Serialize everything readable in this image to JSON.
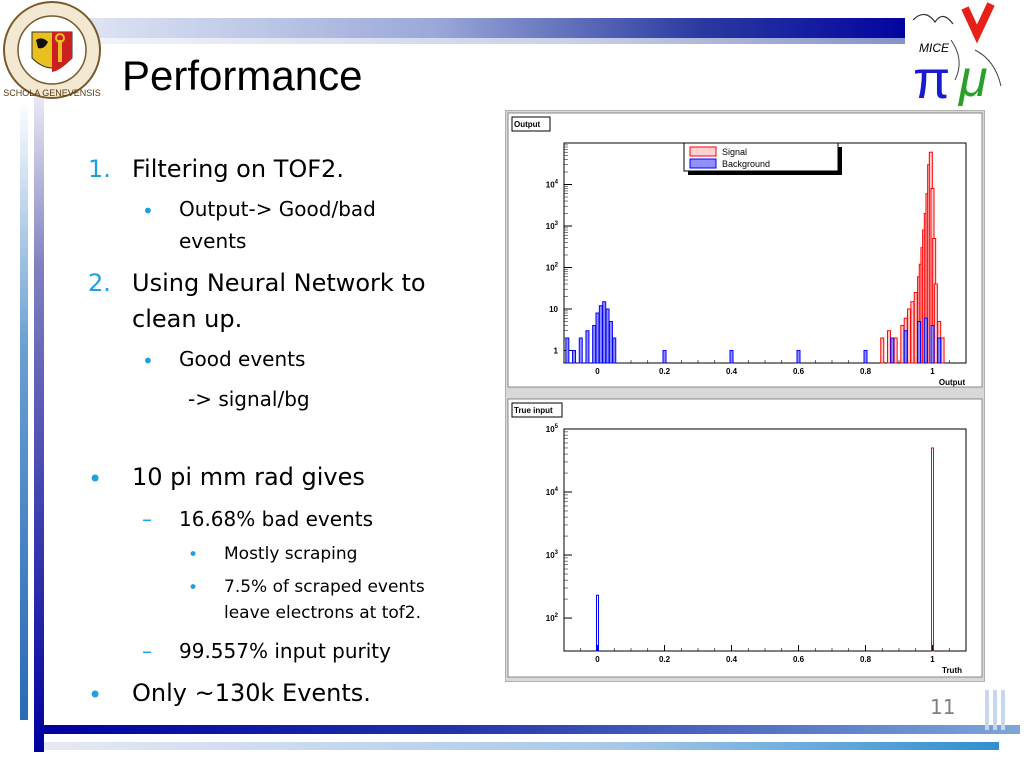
{
  "slide": {
    "title": "Performance",
    "page_number": "11",
    "items": [
      {
        "marker": "1.",
        "text": "Filtering on TOF2."
      },
      {
        "marker": "•",
        "text": "Output-> Good/bad"
      },
      {
        "marker": "",
        "text": "events"
      },
      {
        "marker": "2.",
        "text": "Using Neural Network to"
      },
      {
        "marker": "",
        "text": "clean up."
      },
      {
        "marker": "•",
        "text": "Good events"
      },
      {
        "marker": "",
        "text": "-> signal/bg"
      },
      {
        "marker": "•",
        "text": "10 pi mm rad gives"
      },
      {
        "marker": "–",
        "text": "16.68% bad events"
      },
      {
        "marker": "•",
        "text": "Mostly scraping"
      },
      {
        "marker": "•",
        "text": "7.5% of scraped events"
      },
      {
        "marker": "",
        "text": "leave electrons at tof2."
      },
      {
        "marker": "–",
        "text": "99.557% input purity"
      },
      {
        "marker": "•",
        "text": "Only ~130k Events."
      }
    ],
    "logo_left": {
      "name": "schola-genevensis-seal",
      "text": "SCHOLA GENEVENSIS"
    },
    "logo_right": {
      "name": "mice-logo",
      "text": "MICE"
    }
  },
  "colors": {
    "signal": "#ff0000",
    "background": "#0000ff",
    "bullet": "#1fa0e0",
    "bar_dark": "#0000a0"
  },
  "chart_data": [
    {
      "type": "bar",
      "title": "Output",
      "xlabel": "Output",
      "ylabel": "",
      "y_scale": "log",
      "xlim": [
        -0.1,
        1.1
      ],
      "ylim": [
        0.5,
        100000
      ],
      "x_ticks": [
        "0",
        "0.2",
        "0.4",
        "0.6",
        "0.8",
        "1"
      ],
      "y_ticks": [
        "1",
        "10",
        "10^2",
        "10^3",
        "10^4"
      ],
      "legend": {
        "position": "top",
        "entries": [
          "Signal",
          "Background"
        ]
      },
      "series": [
        {
          "name": "Signal",
          "x": [
            0.85,
            0.87,
            0.89,
            0.91,
            0.92,
            0.93,
            0.94,
            0.95,
            0.96,
            0.965,
            0.97,
            0.975,
            0.98,
            0.985,
            0.99,
            0.995,
            1.0,
            1.005,
            1.01,
            1.02,
            1.03
          ],
          "values": [
            2,
            3,
            2,
            4,
            6,
            10,
            15,
            25,
            60,
            120,
            300,
            800,
            2000,
            6000,
            30000,
            60000,
            8000,
            500,
            40,
            5,
            2
          ]
        },
        {
          "name": "Background",
          "x": [
            -0.09,
            -0.07,
            -0.05,
            -0.03,
            -0.01,
            0.0,
            0.01,
            0.02,
            0.03,
            0.04,
            0.05,
            0.2,
            0.4,
            0.6,
            0.8,
            0.88,
            0.92,
            0.96,
            0.98,
            1.0,
            1.02
          ],
          "values": [
            2,
            1,
            2,
            3,
            4,
            8,
            12,
            15,
            10,
            5,
            2,
            1,
            1,
            1,
            1,
            2,
            3,
            5,
            6,
            4,
            2
          ]
        }
      ]
    },
    {
      "type": "bar",
      "title": "True input",
      "xlabel": "Truth",
      "ylabel": "",
      "y_scale": "log",
      "xlim": [
        -0.1,
        1.1
      ],
      "ylim": [
        30,
        100000
      ],
      "x_ticks": [
        "0",
        "0.2",
        "0.4",
        "0.6",
        "0.8",
        "1"
      ],
      "y_ticks": [
        "10^2",
        "10^3",
        "10^4",
        "10^5"
      ],
      "series": [
        {
          "name": "Background",
          "x": [
            0
          ],
          "values": [
            230
          ]
        },
        {
          "name": "Signal",
          "x": [
            1
          ],
          "values": [
            50000
          ]
        }
      ]
    }
  ]
}
